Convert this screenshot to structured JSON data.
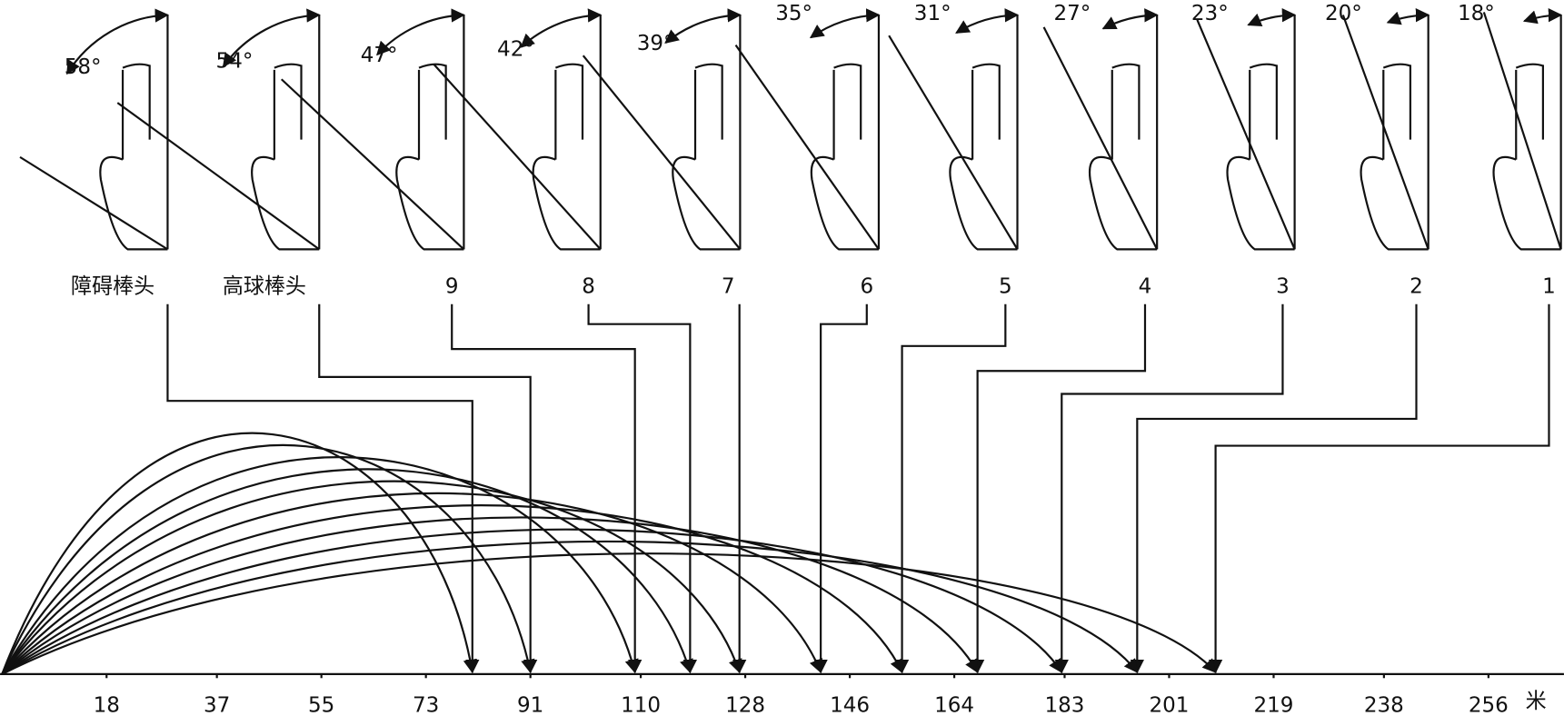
{
  "clubs": [
    {
      "loft": "58°",
      "label": "障碍棒头",
      "landing": 81
    },
    {
      "loft": "54°",
      "label": "高球棒头",
      "landing": 91
    },
    {
      "loft": "47°",
      "label": "9",
      "landing": 109
    },
    {
      "loft": "42°",
      "label": "8",
      "landing": 118.5
    },
    {
      "loft": "39°",
      "label": "7",
      "landing": 127
    },
    {
      "loft": "35°",
      "label": "6",
      "landing": 141
    },
    {
      "loft": "31°",
      "label": "5",
      "landing": 155
    },
    {
      "loft": "27°",
      "label": "4",
      "landing": 168
    },
    {
      "loft": "23°",
      "label": "3",
      "landing": 182.5
    },
    {
      "loft": "20°",
      "label": "2",
      "landing": 195.5
    },
    {
      "loft": "18°",
      "label": "1",
      "landing": 209
    }
  ],
  "axis": {
    "xlim": [
      0,
      269
    ],
    "xticks": [
      18,
      37,
      55,
      73,
      91,
      110,
      128,
      146,
      164,
      183,
      201,
      219,
      238,
      256
    ],
    "unit": "米"
  }
}
